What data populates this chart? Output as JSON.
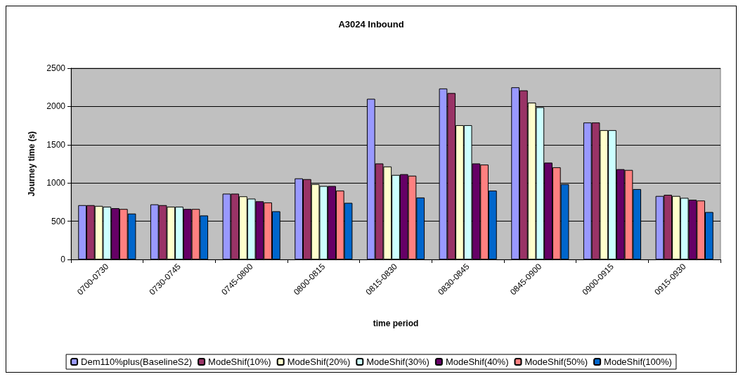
{
  "chart_data": {
    "type": "bar",
    "title": "A3024 Inbound",
    "xlabel": "time period",
    "ylabel": "Journey time (s)",
    "categories": [
      "0700-0730",
      "0730-0745",
      "0745-0800",
      "0800-0815",
      "0815-0830",
      "0830-0845",
      "0845-0900",
      "0900-0915",
      "0915-0930"
    ],
    "series": [
      {
        "name": "Dem110%plus(BaselineS2)",
        "color": "#9999ff",
        "values": [
          710,
          720,
          860,
          1060,
          2100,
          2235,
          2250,
          1790,
          830
        ]
      },
      {
        "name": "ModeShif(10%)",
        "color": "#993366",
        "values": [
          710,
          710,
          860,
          1050,
          1255,
          2175,
          2210,
          1790,
          845
        ]
      },
      {
        "name": "ModeShif(20%)",
        "color": "#ffffcc",
        "values": [
          700,
          690,
          825,
          985,
          1215,
          1755,
          2050,
          1690,
          830
        ]
      },
      {
        "name": "ModeShif(30%)",
        "color": "#ccffff",
        "values": [
          690,
          690,
          795,
          960,
          1105,
          1755,
          1990,
          1690,
          805
        ]
      },
      {
        "name": "ModeShif(40%)",
        "color": "#660066",
        "values": [
          670,
          660,
          760,
          960,
          1115,
          1255,
          1265,
          1180,
          780
        ]
      },
      {
        "name": "ModeShif(50%)",
        "color": "#ff8080",
        "values": [
          660,
          660,
          745,
          900,
          1095,
          1240,
          1205,
          1170,
          770
        ]
      },
      {
        "name": "ModeShif(100%)",
        "color": "#0066cc",
        "values": [
          600,
          575,
          630,
          740,
          810,
          900,
          985,
          920,
          620
        ]
      }
    ],
    "ylim": [
      0,
      2500
    ],
    "yticks": [
      0,
      500,
      1000,
      1500,
      2000,
      2500
    ],
    "grid": "y",
    "legend": "bottom"
  }
}
